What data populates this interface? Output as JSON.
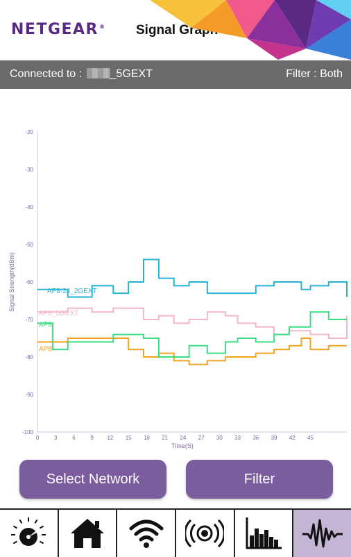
{
  "header": {
    "brand": "NETGEAR",
    "title": "Signal Graph"
  },
  "connection": {
    "label": "Connected to :",
    "ssid_suffix": "_5GEXT",
    "filter": "Filter : Both"
  },
  "colors": {
    "brand": "#5a2a82",
    "button": "#7b5c9f",
    "active_tab": "#c3b6d5"
  },
  "buttons": {
    "select_network": "Select Network",
    "filter": "Filter"
  },
  "tabs": [
    {
      "icon": "dashboard-icon"
    },
    {
      "icon": "home-icon"
    },
    {
      "icon": "wifi-icon"
    },
    {
      "icon": "signal-broadcast-icon"
    },
    {
      "icon": "channel-chart-icon"
    },
    {
      "icon": "signal-graph-icon",
      "active": true
    }
  ],
  "chart_data": {
    "type": "line",
    "xlabel": "Time(S)",
    "ylabel": "Signal Strength(dBm)",
    "ylim": [
      -100,
      -20
    ],
    "yticks": [
      -20,
      -30,
      -40,
      -50,
      -60,
      -70,
      -80,
      -90,
      -100
    ],
    "xticks": [
      0,
      3,
      6,
      9,
      12,
      15,
      18,
      21,
      24,
      27,
      30,
      33,
      36,
      39,
      42,
      45
    ],
    "xlim": [
      0,
      51
    ],
    "grid": false,
    "series": [
      {
        "name": "AP8-24_2GEXT",
        "color": "#24b3d4",
        "x": [
          0,
          2.5,
          5,
          9,
          12.5,
          15,
          17.5,
          20,
          22.5,
          25,
          28,
          31,
          33,
          36,
          39,
          41.5,
          43.5,
          45,
          48,
          51
        ],
        "y": [
          -62,
          -62,
          -64,
          -61,
          -63,
          -60,
          -54,
          -59,
          -61,
          -60,
          -63,
          -63,
          -63,
          -61,
          -60,
          -60,
          -62,
          -61,
          -60,
          -64
        ]
      },
      {
        "name": "AP8_5GEXT",
        "color": "#f2b7c7",
        "x": [
          0,
          2.5,
          5,
          9,
          12.5,
          15,
          17.5,
          20,
          22.5,
          25,
          28,
          31,
          33,
          36,
          39,
          41.5,
          43.5,
          45,
          48,
          51
        ],
        "y": [
          -68,
          -68,
          -67,
          -68,
          -67,
          -67,
          -70,
          -69,
          -71,
          -70,
          -68,
          -69,
          -71,
          -72,
          -74,
          -73,
          -73,
          -74,
          -75,
          -69
        ]
      },
      {
        "name": "AP8",
        "color": "#f0a31c",
        "x": [
          0,
          2.5,
          5,
          9,
          12.5,
          15,
          17.5,
          20,
          22.5,
          25,
          28,
          31,
          33,
          36,
          39,
          41.5,
          43.5,
          45,
          48,
          51
        ],
        "y": [
          -76,
          -76,
          -75,
          -75,
          -75,
          -78,
          -80,
          -79,
          -81,
          -82,
          -81,
          -80,
          -80,
          -79,
          -78,
          -77,
          -75,
          -78,
          -77,
          -77
        ]
      },
      {
        "name": "AP8",
        "color": "#3ddc84",
        "x": [
          0,
          2.5,
          5,
          9,
          12.5,
          15,
          17.5,
          20,
          22.5,
          25,
          28,
          31,
          33,
          36,
          39,
          41.5,
          43.5,
          45,
          48,
          51
        ],
        "y": [
          -71,
          -78,
          -76,
          -76,
          -74,
          -74,
          -75,
          -80,
          -80,
          -77,
          -79,
          -76,
          -75,
          -76,
          -74,
          -72,
          -72,
          -68,
          -70,
          -70
        ]
      }
    ]
  }
}
